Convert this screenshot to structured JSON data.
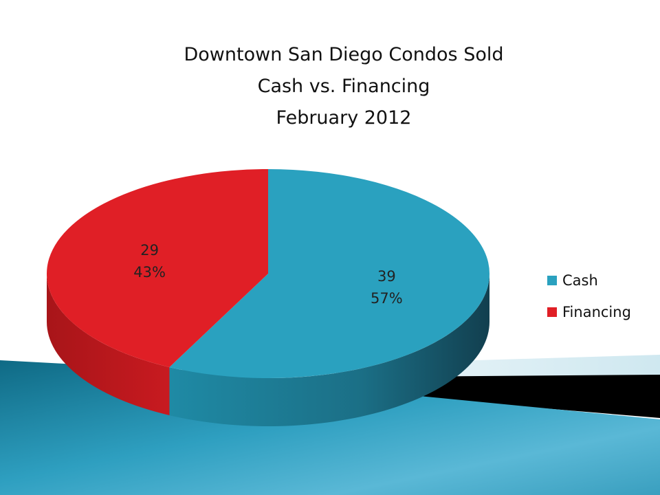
{
  "chart_data": {
    "type": "pie",
    "title_lines": [
      "Downtown San Diego Condos Sold",
      "Cash vs. Financing",
      "February 2012"
    ],
    "slices": [
      {
        "name": "Cash",
        "value": 39,
        "percent": "57%",
        "color": "#2aa1bf"
      },
      {
        "name": "Financing",
        "value": 29,
        "percent": "43%",
        "color": "#e01f26"
      }
    ],
    "legend": {
      "placement": "right",
      "entries": [
        "Cash",
        "Financing"
      ]
    },
    "three_d": true
  }
}
